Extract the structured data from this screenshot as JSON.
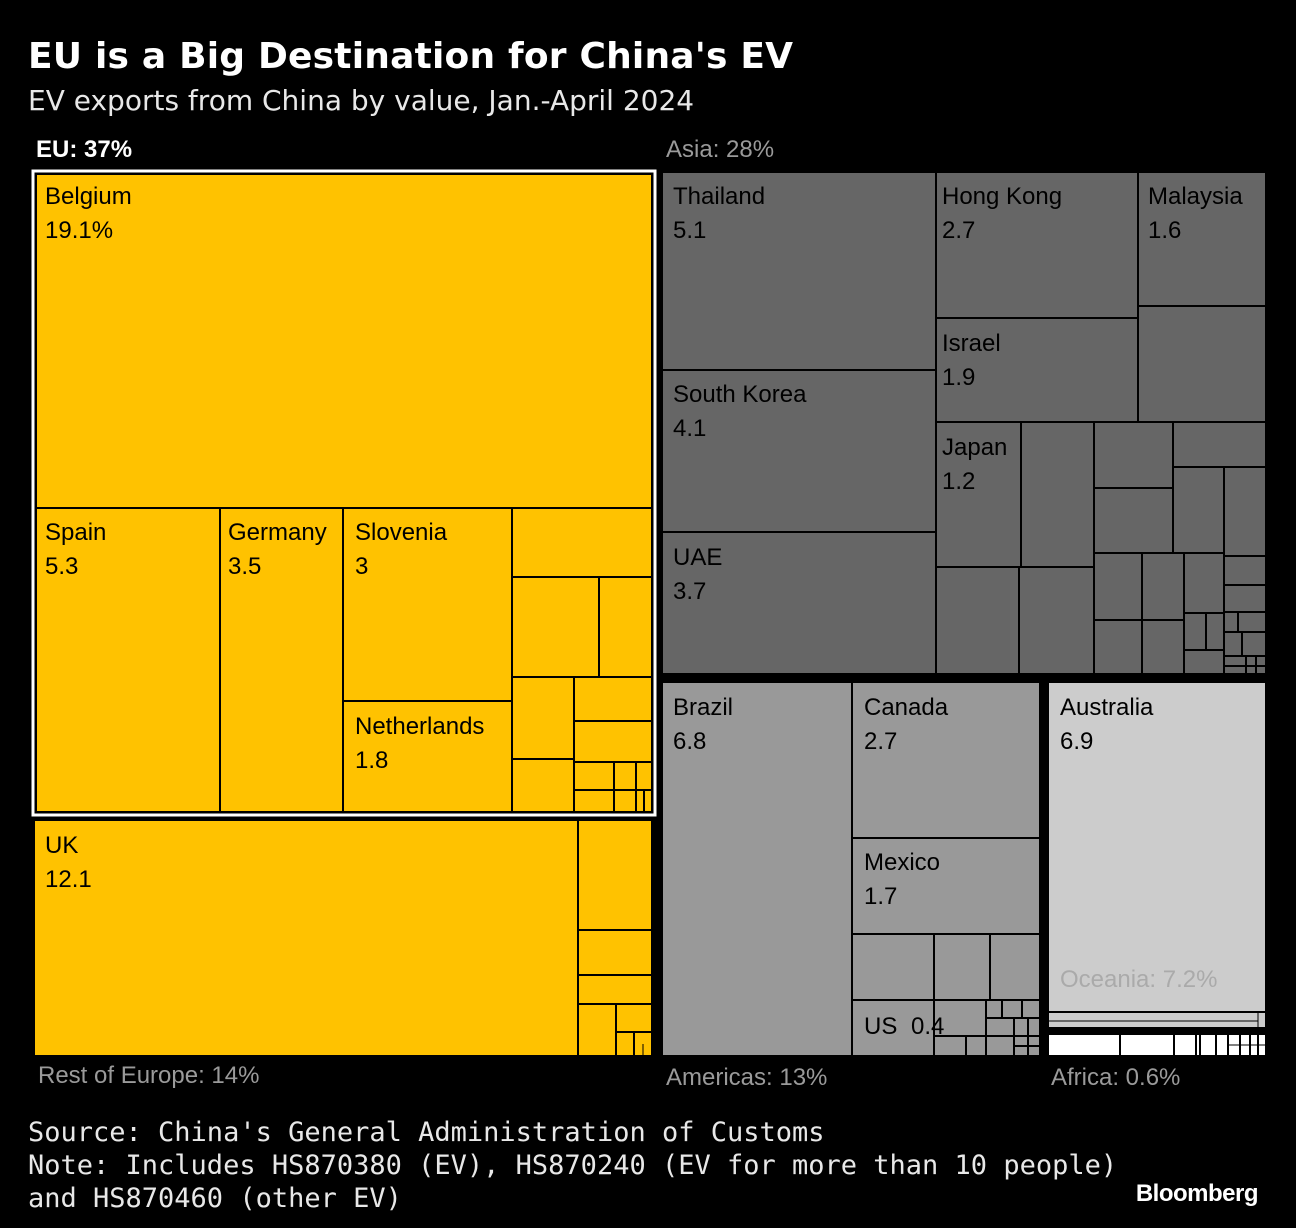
{
  "header": {
    "title": "EU is a Big Destination for China's EV",
    "subtitle": "EV exports from China by value, Jan.-April 2024"
  },
  "chart_data": {
    "type": "treemap",
    "groups": [
      {
        "name": "EU",
        "label": "EU: 37%",
        "share": 37,
        "color": "#ffc200",
        "label_color": "#ffffff",
        "items": [
          {
            "name": "Belgium",
            "value": 19.1,
            "label": "19.1%"
          },
          {
            "name": "Spain",
            "value": 5.3,
            "label": "5.3"
          },
          {
            "name": "Germany",
            "value": 3.5,
            "label": "3.5"
          },
          {
            "name": "Slovenia",
            "value": 3,
            "label": "3"
          },
          {
            "name": "Netherlands",
            "value": 1.8,
            "label": "1.8"
          }
        ]
      },
      {
        "name": "Rest of Europe",
        "label": "Rest of Europe: 14%",
        "share": 14,
        "color": "#ffc200",
        "label_color": "#9a9a9a",
        "items": [
          {
            "name": "UK",
            "value": 12.1,
            "label": "12.1"
          }
        ]
      },
      {
        "name": "Asia",
        "label": "Asia: 28%",
        "share": 28,
        "color": "#666666",
        "label_color": "#9a9a9a",
        "items": [
          {
            "name": "Thailand",
            "value": 5.1,
            "label": "5.1"
          },
          {
            "name": "Hong Kong",
            "value": 2.7,
            "label": "2.7"
          },
          {
            "name": "Malaysia",
            "value": 1.6,
            "label": "1.6"
          },
          {
            "name": "South Korea",
            "value": 4.1,
            "label": "4.1"
          },
          {
            "name": "Israel",
            "value": 1.9,
            "label": "1.9"
          },
          {
            "name": "Japan",
            "value": 1.2,
            "label": "1.2"
          },
          {
            "name": "UAE",
            "value": 3.7,
            "label": "3.7"
          }
        ]
      },
      {
        "name": "Americas",
        "label": "Americas: 13%",
        "share": 13,
        "color": "#999999",
        "label_color": "#9a9a9a",
        "items": [
          {
            "name": "Brazil",
            "value": 6.8,
            "label": "6.8"
          },
          {
            "name": "Canada",
            "value": 2.7,
            "label": "2.7"
          },
          {
            "name": "Mexico",
            "value": 1.7,
            "label": "1.7"
          },
          {
            "name": "US",
            "value": 0.4,
            "label": "0.4"
          }
        ]
      },
      {
        "name": "Oceania",
        "label": "Oceania: 7.2%",
        "share": 7.2,
        "color": "#cccccc",
        "label_color": "#aaaaaa",
        "items": [
          {
            "name": "Australia",
            "value": 6.9,
            "label": "6.9"
          }
        ]
      },
      {
        "name": "Africa",
        "label": "Africa: 0.6%",
        "share": 0.6,
        "color": "#ffffff",
        "label_color": "#9a9a9a",
        "items": []
      }
    ]
  },
  "footer": {
    "source": "Source: China's General Administration of Customs",
    "note_line1": "Note: Includes HS870380 (EV), HS870240 (EV for more than 10 people)",
    "note_line2": "and HS870460 (other EV)",
    "brand": "Bloomberg"
  }
}
